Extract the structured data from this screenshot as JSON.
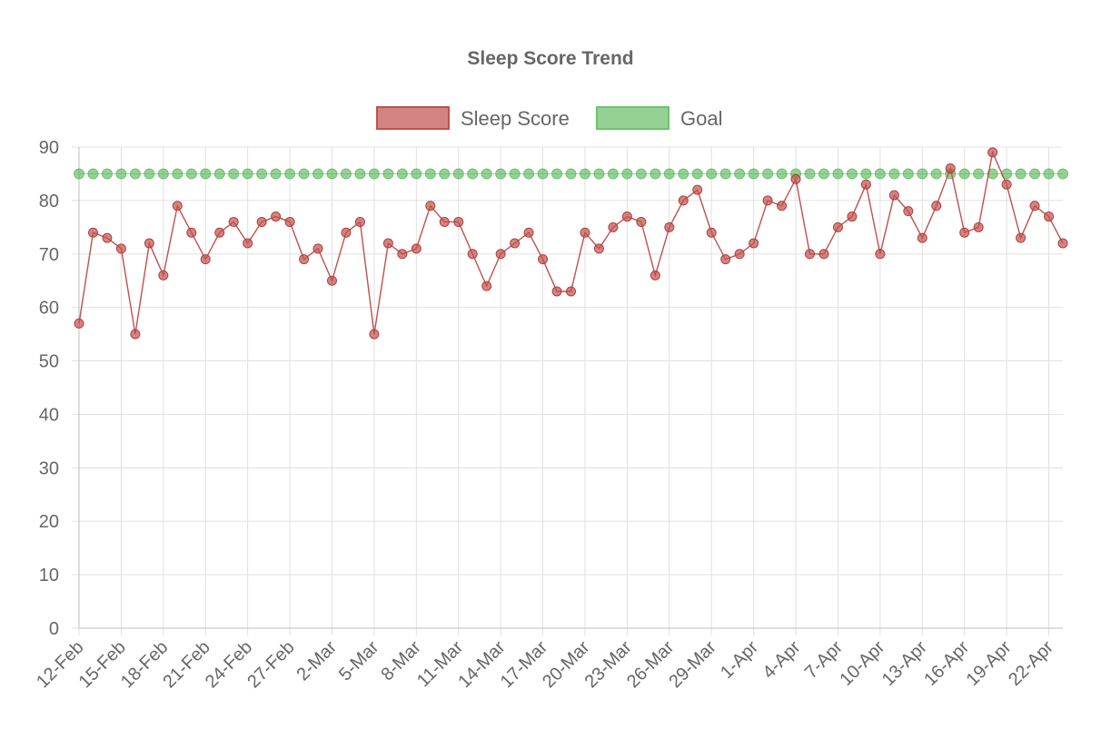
{
  "chart_data": {
    "type": "line",
    "title": "Sleep Score Trend",
    "xlabel": "",
    "ylabel": "",
    "ylim": [
      0,
      90
    ],
    "y_ticks": [
      "0",
      "10",
      "20",
      "30",
      "40",
      "50",
      "60",
      "70",
      "80",
      "90"
    ],
    "x_tick_labels": [
      "12-Feb",
      "15-Feb",
      "18-Feb",
      "21-Feb",
      "24-Feb",
      "27-Feb",
      "2-Mar",
      "5-Mar",
      "8-Mar",
      "11-Mar",
      "14-Mar",
      "17-Mar",
      "20-Mar",
      "23-Mar",
      "26-Mar",
      "29-Mar",
      "1-Apr",
      "4-Apr",
      "7-Apr",
      "10-Apr",
      "13-Apr",
      "16-Apr",
      "19-Apr",
      "22-Apr"
    ],
    "legend_position": "top",
    "grid": true,
    "series": [
      {
        "name": "Sleep Score",
        "color": "#c0504d",
        "values": [
          57,
          74,
          73,
          71,
          55,
          72,
          66,
          79,
          74,
          69,
          74,
          76,
          72,
          76,
          77,
          76,
          69,
          71,
          65,
          74,
          76,
          55,
          72,
          70,
          71,
          79,
          76,
          76,
          70,
          64,
          70,
          72,
          74,
          69,
          63,
          63,
          74,
          71,
          75,
          77,
          76,
          66,
          75,
          80,
          82,
          74,
          69,
          70,
          72,
          80,
          79,
          84,
          70,
          70,
          75,
          77,
          83,
          70,
          81,
          78,
          73,
          79,
          86,
          74,
          75,
          89,
          83,
          73,
          79,
          77,
          72
        ]
      },
      {
        "name": "Goal",
        "color": "#5cb85c",
        "values": [
          85,
          85,
          85,
          85,
          85,
          85,
          85,
          85,
          85,
          85,
          85,
          85,
          85,
          85,
          85,
          85,
          85,
          85,
          85,
          85,
          85,
          85,
          85,
          85,
          85,
          85,
          85,
          85,
          85,
          85,
          85,
          85,
          85,
          85,
          85,
          85,
          85,
          85,
          85,
          85,
          85,
          85,
          85,
          85,
          85,
          85,
          85,
          85,
          85,
          85,
          85,
          85,
          85,
          85,
          85,
          85,
          85,
          85,
          85,
          85,
          85,
          85,
          85,
          85,
          85,
          85,
          85,
          85,
          85,
          85,
          85
        ]
      }
    ]
  }
}
